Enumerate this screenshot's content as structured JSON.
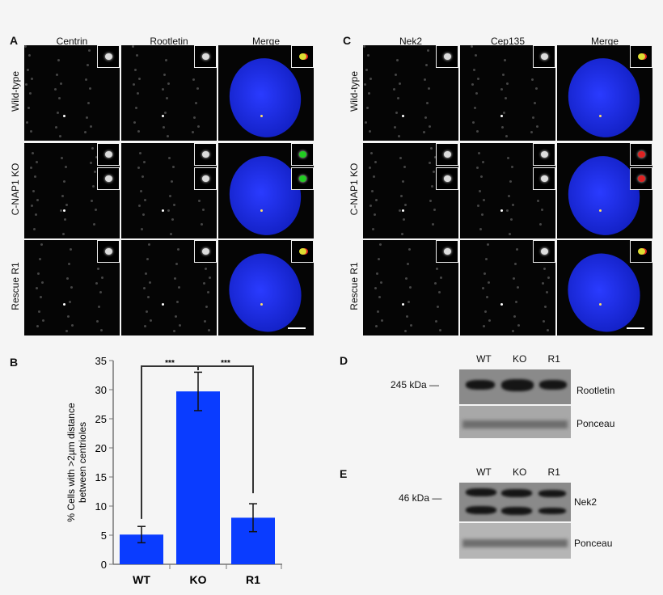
{
  "panelA": {
    "label": "A",
    "columns": [
      "Centrin",
      "Rootletin",
      "Merge"
    ],
    "rows": [
      "Wild-type",
      "C-NAP1 KO",
      "Rescue R1"
    ]
  },
  "panelC": {
    "label": "C",
    "columns": [
      "Nek2",
      "Cep135",
      "Merge"
    ],
    "rows": [
      "Wild-type",
      "C-NAP1 KO",
      "Rescue R1"
    ]
  },
  "panelB": {
    "label": "B"
  },
  "panelD": {
    "label": "D",
    "lanes": [
      "WT",
      "KO",
      "R1"
    ],
    "marker": "245 kDa",
    "blot_label": "Rootletin",
    "loading_label": "Ponceau"
  },
  "panelE": {
    "label": "E",
    "lanes": [
      "WT",
      "KO",
      "R1"
    ],
    "marker": "46 kDa",
    "blot_label": "Nek2",
    "loading_label": "Ponceau"
  },
  "chart_data": {
    "type": "bar",
    "categories": [
      "WT",
      "KO",
      "R1"
    ],
    "values": [
      5.1,
      29.7,
      8.0
    ],
    "errors": [
      1.4,
      3.3,
      2.4
    ],
    "ylabel": "% Cells with >2µm distance between centrioles",
    "ylabel_lines": [
      "% Cells with >2µm distance",
      "between centrioles"
    ],
    "ylim": [
      0,
      35
    ],
    "yticks": [
      0,
      5,
      10,
      15,
      20,
      25,
      30,
      35
    ],
    "significance": [
      {
        "pair": [
          "WT",
          "KO"
        ],
        "label": "***"
      },
      {
        "pair": [
          "KO",
          "R1"
        ],
        "label": "***"
      }
    ],
    "bar_color": "#0a3cff",
    "grid": false
  }
}
